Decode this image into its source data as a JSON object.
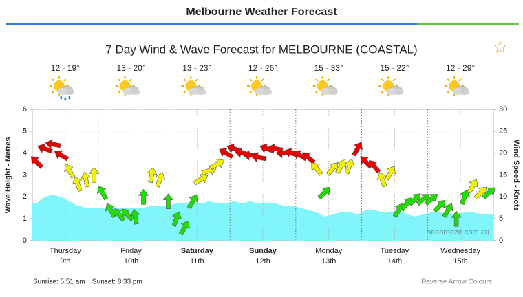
{
  "header": {
    "title": "Melbourne Weather Forecast"
  },
  "chart_data": {
    "type": "wind-wave",
    "title": "7 Day Wind & Wave Forecast for MELBOURNE (COASTAL)",
    "days": [
      {
        "temp": "12 - 19°",
        "day": "Thursday",
        "date": "9th",
        "bold": false,
        "rain": true
      },
      {
        "temp": "13 - 20°",
        "day": "Friday",
        "date": "10th",
        "bold": false,
        "rain": false
      },
      {
        "temp": "13 - 23°",
        "day": "Saturday",
        "date": "11th",
        "bold": true,
        "rain": false
      },
      {
        "temp": "12 - 26°",
        "day": "Sunday",
        "date": "12th",
        "bold": true,
        "rain": false
      },
      {
        "temp": "15 - 33°",
        "day": "Monday",
        "date": "13th",
        "bold": false,
        "rain": false
      },
      {
        "temp": "15 - 22°",
        "day": "Tuesday",
        "date": "14th",
        "bold": false,
        "rain": false
      },
      {
        "temp": "12 - 29°",
        "day": "Wednesday",
        "date": "15th",
        "bold": false,
        "rain": false
      }
    ],
    "ylabel": "Wave Height - Metres",
    "y2label": "Wind Speed - Knots",
    "ylim": [
      0,
      6
    ],
    "yticks": [
      0,
      1,
      2,
      3,
      4,
      5,
      6
    ],
    "y2lim": [
      0,
      30
    ],
    "y2ticks": [
      0,
      5,
      10,
      15,
      20,
      25,
      30
    ],
    "grid": true,
    "series": [
      {
        "color": "#80f6fb",
        "values": [
          1.7,
          2.0,
          2.1,
          2.0,
          1.8,
          1.6,
          1.5,
          1.5,
          1.5,
          1.5,
          1.5,
          1.5,
          1.5,
          1.5,
          1.6,
          1.6,
          1.6,
          1.7,
          1.7,
          1.7,
          1.7,
          1.8,
          1.7,
          1.7,
          1.8,
          1.7,
          1.8,
          1.7,
          1.7,
          1.7,
          1.6,
          1.6,
          1.5,
          1.4,
          1.3,
          1.1,
          1.2,
          1.3,
          1.3,
          1.2,
          1.4,
          1.4,
          1.3,
          1.3,
          1.4,
          1.2,
          1.1,
          1.2,
          1.3,
          1.3,
          1.2,
          1.2,
          1.3,
          1.3,
          1.2,
          1.2
        ]
      },
      {
        "axis": "y2",
        "values": [
          18,
          21,
          22,
          19.5,
          16,
          13,
          14,
          15,
          11,
          7,
          6,
          6,
          5.5,
          10,
          15,
          14,
          9,
          5,
          3,
          9,
          14,
          16,
          17.5,
          20,
          21,
          20,
          19.5,
          19,
          21,
          21,
          20,
          20,
          19.5,
          19,
          16.5,
          11,
          16.5,
          17,
          17,
          21,
          18,
          17,
          14,
          15.5,
          7,
          8.5,
          9.5,
          9.5,
          9.5,
          8,
          7,
          5,
          10,
          12.5,
          11,
          11
        ],
        "directions": [
          315,
          290,
          280,
          300,
          330,
          340,
          350,
          0,
          330,
          330,
          320,
          315,
          350,
          0,
          10,
          20,
          0,
          20,
          30,
          30,
          60,
          70,
          60,
          300,
          290,
          280,
          270,
          280,
          290,
          280,
          270,
          290,
          300,
          310,
          320,
          45,
          40,
          30,
          20,
          30,
          315,
          320,
          340,
          30,
          30,
          40,
          45,
          50,
          50,
          45,
          30,
          0,
          20,
          30,
          45,
          50
        ],
        "colors": [
          "#e60000",
          "#e60000",
          "#e60000",
          "#e60000",
          "#f2f200",
          "#f2f200",
          "#f2f200",
          "#f2f200",
          "#22dd00",
          "#22dd00",
          "#22dd00",
          "#22dd00",
          "#22dd00",
          "#22dd00",
          "#f2f200",
          "#f2f200",
          "#22dd00",
          "#22dd00",
          "#22dd00",
          "#22dd00",
          "#f2f200",
          "#f2f200",
          "#f2f200",
          "#e60000",
          "#e60000",
          "#e60000",
          "#e60000",
          "#e60000",
          "#e60000",
          "#e60000",
          "#e60000",
          "#e60000",
          "#e60000",
          "#e60000",
          "#f2f200",
          "#22dd00",
          "#f2f200",
          "#f2f200",
          "#f2f200",
          "#e60000",
          "#e60000",
          "#e60000",
          "#f2f200",
          "#f2f200",
          "#22dd00",
          "#22dd00",
          "#22dd00",
          "#22dd00",
          "#22dd00",
          "#22dd00",
          "#22dd00",
          "#22dd00",
          "#22dd00",
          "#f2f200",
          "#f2f200",
          "#22dd00"
        ]
      }
    ],
    "watermark": "seabreeze.com.au"
  },
  "footer": {
    "sunrise": "Sunrise: 5:51 am",
    "sunset": "Sunset: 8:33 pm",
    "link": "Reverse Arrow Colours"
  }
}
